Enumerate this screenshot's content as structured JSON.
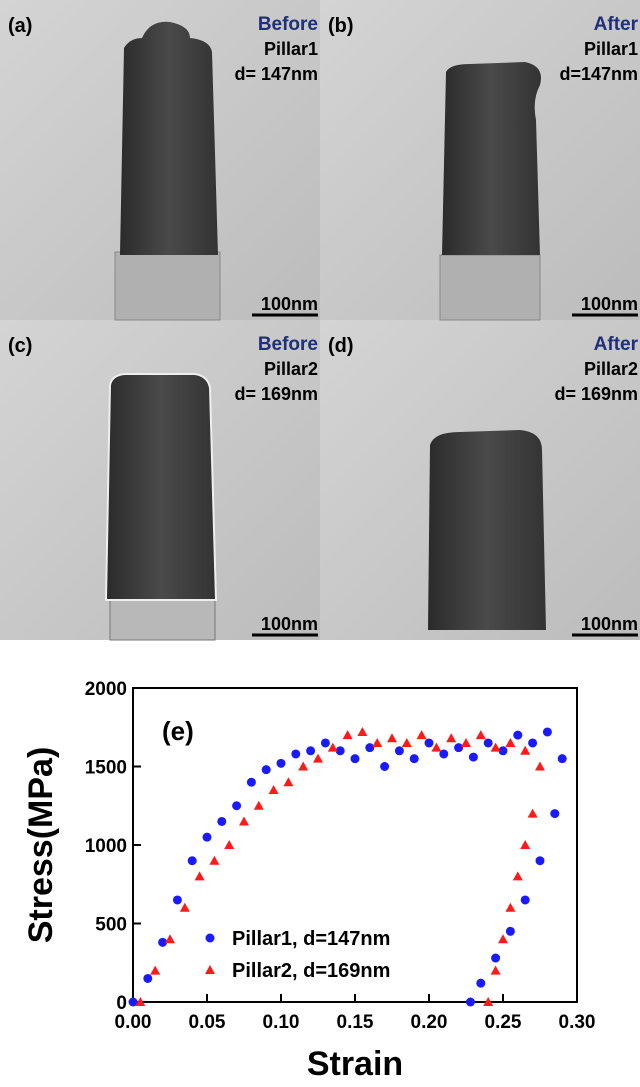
{
  "panels": [
    {
      "label": "(a)",
      "state": "Before",
      "pillar": "Pillar1",
      "diameter": "d= 147nm",
      "scale_bar": "100nm"
    },
    {
      "label": "(b)",
      "state": "After",
      "pillar": "Pillar1",
      "diameter": "d=147nm",
      "scale_bar": "100nm"
    },
    {
      "label": "(c)",
      "state": "Before",
      "pillar": "Pillar2",
      "diameter": "d= 169nm",
      "scale_bar": "100nm"
    },
    {
      "label": "(d)",
      "state": "After",
      "pillar": "Pillar2",
      "diameter": "d= 169nm",
      "scale_bar": "100nm"
    }
  ],
  "chart_data": {
    "type": "scatter",
    "panel_label": "(e)",
    "xlabel": "Strain",
    "ylabel": "Stress(MPa)",
    "xlim": [
      0,
      0.3
    ],
    "ylim": [
      0,
      2000
    ],
    "xticks": [
      {
        "value": 0,
        "label": "0.00"
      },
      {
        "value": 0.05,
        "label": "0.05"
      },
      {
        "value": 0.1,
        "label": "0.10"
      },
      {
        "value": 0.15,
        "label": "0.15"
      },
      {
        "value": 0.2,
        "label": "0.20"
      },
      {
        "value": 0.25,
        "label": "0.25"
      },
      {
        "value": 0.3,
        "label": "0.30"
      }
    ],
    "yticks": [
      0,
      500,
      1000,
      1500,
      2000
    ],
    "series": [
      {
        "name": "Pillar1, d=147nm",
        "color": "#1a1aff",
        "marker": "circle",
        "x": [
          0,
          0.01,
          0.02,
          0.03,
          0.04,
          0.05,
          0.06,
          0.07,
          0.08,
          0.09,
          0.1,
          0.11,
          0.12,
          0.13,
          0.14,
          0.15,
          0.16,
          0.17,
          0.18,
          0.19,
          0.2,
          0.21,
          0.22,
          0.23,
          0.24,
          0.25,
          0.26,
          0.27,
          0.28,
          0.29,
          0.285,
          0.275,
          0.265,
          0.255,
          0.245,
          0.235,
          0.228
        ],
        "values": [
          0,
          150,
          380,
          650,
          900,
          1050,
          1150,
          1250,
          1400,
          1480,
          1520,
          1580,
          1600,
          1650,
          1600,
          1550,
          1620,
          1500,
          1600,
          1550,
          1650,
          1580,
          1620,
          1560,
          1650,
          1600,
          1700,
          1650,
          1720,
          1550,
          1200,
          900,
          650,
          450,
          280,
          120,
          0
        ]
      },
      {
        "name": "Pillar2, d=169nm",
        "color": "#ff1a1a",
        "marker": "triangle",
        "x": [
          0.005,
          0.015,
          0.025,
          0.035,
          0.045,
          0.055,
          0.065,
          0.075,
          0.085,
          0.095,
          0.105,
          0.115,
          0.125,
          0.135,
          0.145,
          0.155,
          0.165,
          0.175,
          0.185,
          0.195,
          0.205,
          0.215,
          0.225,
          0.235,
          0.245,
          0.255,
          0.265,
          0.275,
          0.27,
          0.265,
          0.26,
          0.255,
          0.25,
          0.245,
          0.24
        ],
        "values": [
          0,
          200,
          400,
          600,
          800,
          900,
          1000,
          1150,
          1250,
          1350,
          1400,
          1500,
          1550,
          1620,
          1700,
          1720,
          1650,
          1680,
          1650,
          1700,
          1620,
          1680,
          1650,
          1700,
          1620,
          1650,
          1600,
          1500,
          1200,
          1000,
          800,
          600,
          400,
          200,
          0
        ]
      }
    ]
  }
}
